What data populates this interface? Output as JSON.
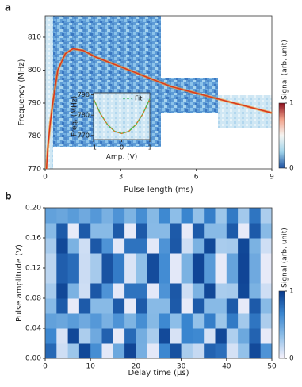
{
  "chart_data": [
    {
      "type": "line",
      "label": "a",
      "xlabel": "Pulse length (ms)",
      "ylabel": "Frequency (MHz)",
      "xlim": [
        0,
        9
      ],
      "xticks": [
        0,
        3,
        6,
        9
      ],
      "ylim": [
        770,
        816.5
      ],
      "yticks": [
        770,
        780,
        790,
        800,
        810
      ],
      "series": [
        {
          "color": "#d9381e",
          "x": [
            0.05,
            0.1,
            0.2,
            0.3,
            0.5,
            0.8,
            1.1,
            1.5,
            2,
            3,
            4,
            5,
            6,
            7,
            8,
            9
          ],
          "values": [
            770,
            776,
            784,
            790,
            800,
            805,
            806.5,
            806,
            804,
            801,
            798,
            795,
            793,
            791,
            789,
            787
          ]
        }
      ],
      "colorbar": {
        "label": "Signal (arb. unit)",
        "lim": [
          0,
          1
        ],
        "ticks": [
          0,
          1
        ],
        "colors": [
          "#1c4fa0",
          "#9fd3ea",
          "#f5f5f2",
          "#f2a28a",
          "#8b0d1c"
        ]
      }
    },
    {
      "type": "line",
      "xlabel": "Amp. (V)",
      "ylabel": "Freq. (MHz)",
      "xlim": [
        -1,
        1
      ],
      "xticks": [
        -1,
        0,
        1
      ],
      "ylim": [
        768,
        791
      ],
      "yticks": [
        770,
        780,
        790
      ],
      "series": [
        {
          "color": "#e07a2c",
          "x": [
            -1,
            -0.75,
            -0.5,
            -0.25,
            0,
            0.25,
            0.5,
            0.75,
            1
          ],
          "values": [
            788,
            780.5,
            775.3,
            772,
            771,
            772,
            775.3,
            780.5,
            788
          ]
        },
        {
          "name": "Fit",
          "color": "#3fbf5a",
          "dashed": true,
          "x": [
            -1,
            -0.75,
            -0.5,
            -0.25,
            0,
            0.25,
            0.5,
            0.75,
            1
          ],
          "values": [
            788,
            780.6,
            775.2,
            772.1,
            771,
            772.1,
            775.2,
            780.6,
            788
          ]
        }
      ]
    },
    {
      "type": "heatmap",
      "label": "b",
      "xlabel": "Delay time (μs)",
      "ylabel": "Pulse amplitude (V)",
      "xlim": [
        0,
        50
      ],
      "xticks": [
        0,
        10,
        20,
        30,
        40,
        50
      ],
      "ylim": [
        0,
        0.2
      ],
      "yticks": [
        {
          "value": 0,
          "label": "0.00"
        },
        0.04,
        0.08,
        0.12,
        0.16,
        {
          "value": 0.2,
          "label": "0.20"
        }
      ],
      "x": [
        1.25,
        3.75,
        6.25,
        8.75,
        11.25,
        13.75,
        16.25,
        18.75,
        21.25,
        23.75,
        26.25,
        28.75,
        31.25,
        33.75,
        36.25,
        38.75,
        41.25,
        43.75,
        46.25,
        48.75
      ],
      "y": [
        0.01,
        0.03,
        0.05,
        0.07,
        0.09,
        0.11,
        0.13,
        0.15,
        0.17,
        0.19
      ],
      "z": [
        [
          0.8,
          0.13,
          0.29,
          0.94,
          0.62,
          0.06,
          0.47,
          0.95,
          0.43,
          0.06,
          0.66,
          0.9,
          0.25,
          0.16,
          0.82,
          0.77,
          0.11,
          0.32,
          0.93,
          0.59
        ],
        [
          0.66,
          0.1,
          0.94,
          0.24,
          0.46,
          0.83,
          0.05,
          0.79,
          0.44,
          0.25,
          0.93,
          0.1,
          0.67,
          0.65,
          0.11,
          0.94,
          0.23,
          0.47,
          0.82,
          0.05
        ],
        [
          0.51,
          0.48,
          0.54,
          0.46,
          0.56,
          0.42,
          0.59,
          0.4,
          0.62,
          0.37,
          0.65,
          0.34,
          0.67,
          0.32,
          0.7,
          0.29,
          0.72,
          0.27,
          0.74,
          0.24
        ],
        [
          0.36,
          0.86,
          0.05,
          0.86,
          0.36,
          0.36,
          0.86,
          0.05,
          0.86,
          0.36,
          0.36,
          0.86,
          0.05,
          0.86,
          0.36,
          0.36,
          0.86,
          0.05,
          0.86,
          0.36
        ],
        [
          0.26,
          0.94,
          0.41,
          0.13,
          0.87,
          0.59,
          0.06,
          0.75,
          0.75,
          0.06,
          0.59,
          0.87,
          0.13,
          0.41,
          0.94,
          0.25,
          0.26,
          0.94,
          0.41,
          0.13
        ],
        [
          0.19,
          0.84,
          0.78,
          0.14,
          0.26,
          0.89,
          0.71,
          0.09,
          0.33,
          0.92,
          0.63,
          0.06,
          0.41,
          0.95,
          0.55,
          0.05,
          0.5,
          0.95,
          0.46,
          0.05
        ],
        [
          0.19,
          0.84,
          0.78,
          0.14,
          0.26,
          0.89,
          0.71,
          0.09,
          0.33,
          0.92,
          0.63,
          0.06,
          0.41,
          0.95,
          0.55,
          0.05,
          0.5,
          0.95,
          0.46,
          0.05
        ],
        [
          0.26,
          0.94,
          0.41,
          0.13,
          0.87,
          0.59,
          0.06,
          0.75,
          0.75,
          0.06,
          0.59,
          0.87,
          0.13,
          0.41,
          0.94,
          0.25,
          0.26,
          0.94,
          0.41,
          0.13
        ],
        [
          0.36,
          0.86,
          0.05,
          0.86,
          0.36,
          0.36,
          0.86,
          0.05,
          0.86,
          0.36,
          0.36,
          0.86,
          0.05,
          0.86,
          0.36,
          0.36,
          0.86,
          0.05,
          0.86,
          0.36
        ],
        [
          0.51,
          0.48,
          0.54,
          0.46,
          0.56,
          0.42,
          0.59,
          0.4,
          0.62,
          0.37,
          0.65,
          0.34,
          0.67,
          0.32,
          0.7,
          0.29,
          0.72,
          0.27,
          0.74,
          0.24
        ]
      ],
      "colorbar": {
        "label": "Signal (arb. unit)",
        "lim": [
          0,
          1
        ],
        "ticks": [
          0,
          1
        ],
        "colors": [
          "#f6f1fb",
          "#8fbfe8",
          "#3a86d0",
          "#083a8c"
        ]
      }
    }
  ]
}
